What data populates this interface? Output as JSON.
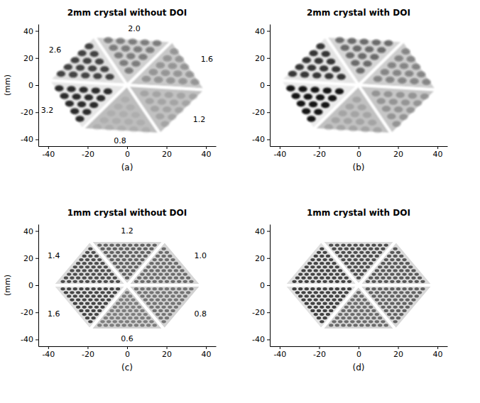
{
  "chart_data": [
    {
      "type": "image",
      "title": "2mm crystal without DOI",
      "panel": "(a)",
      "ylabel": "(mm)",
      "xlim": [
        -45,
        45
      ],
      "ylim": [
        -45,
        45
      ],
      "xticks": [
        -40,
        -20,
        0,
        20,
        40
      ],
      "yticks": [
        -40,
        -20,
        0,
        20,
        40
      ],
      "sector_labels": [
        1.6,
        {
          "value": 2,
          "label": "2.0"
        },
        2.6,
        3.2,
        0.8,
        1.2
      ]
    },
    {
      "type": "image",
      "title": "2mm crystal with DOI",
      "panel": "(b)",
      "xlim": [
        -45,
        45
      ],
      "ylim": [
        -45,
        45
      ],
      "xticks": [
        -40,
        -20,
        0,
        20,
        40
      ],
      "yticks": [
        -40,
        -20,
        0,
        20,
        40
      ]
    },
    {
      "type": "image",
      "title": "1mm crystal without DOI",
      "panel": "(c)",
      "ylabel": "(mm)",
      "xlim": [
        -45,
        45
      ],
      "ylim": [
        -45,
        45
      ],
      "xticks": [
        -40,
        -20,
        0,
        20,
        40
      ],
      "yticks": [
        -40,
        -20,
        0,
        20,
        40
      ],
      "sector_labels": [
        {
          "value": 1,
          "label": "1.0"
        },
        1.2,
        1.4,
        1.6,
        0.6,
        0.8
      ]
    },
    {
      "type": "image",
      "title": "1mm crystal with DOI",
      "panel": "(d)",
      "xlim": [
        -45,
        45
      ],
      "ylim": [
        -45,
        45
      ],
      "xticks": [
        -40,
        -20,
        0,
        20,
        40
      ],
      "yticks": [
        -40,
        -20,
        0,
        20,
        40
      ]
    }
  ]
}
